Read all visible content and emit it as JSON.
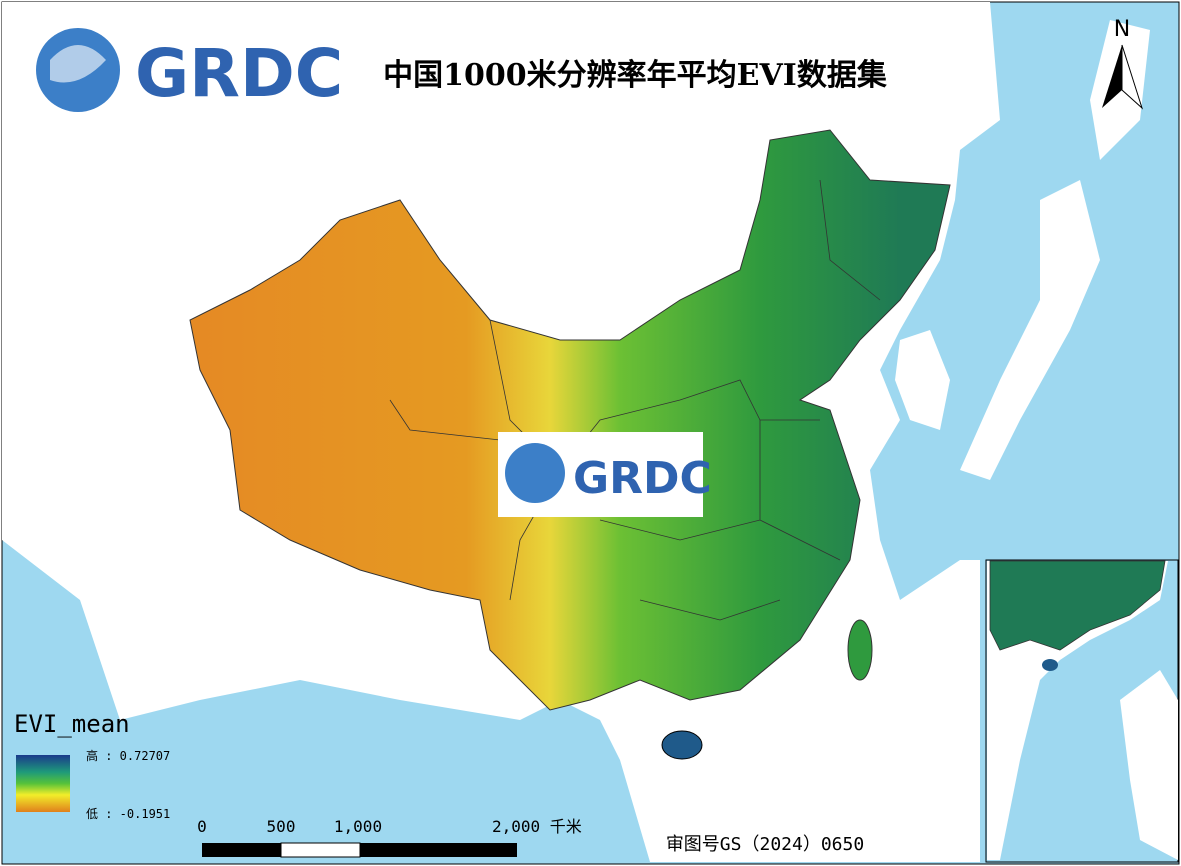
{
  "header": {
    "logo": "GRDC",
    "title": "中国1000米分辨率年平均EVI数据集"
  },
  "north_arrow": {
    "label": "N"
  },
  "watermark": {
    "logo": "GRDC"
  },
  "legend": {
    "title": "EVI_mean",
    "high": "高 : 0.72707",
    "low": "低 : -0.1951"
  },
  "scale_bar": {
    "labels": [
      "0",
      "500",
      "1,000",
      "2,000 千米"
    ]
  },
  "approval_number": "审图号GS（2024）0650"
}
